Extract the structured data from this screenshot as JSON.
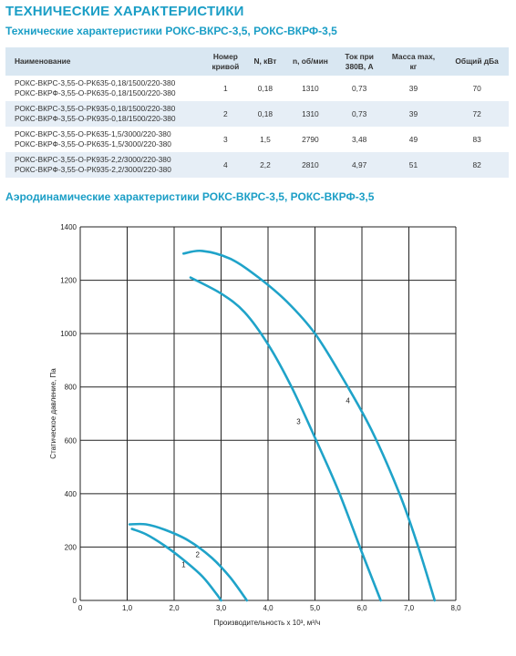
{
  "title": "ТЕХНИЧЕСКИЕ ХАРАКТЕРИСТИКИ",
  "table_title": "Технические характеристики РОКС-ВКРС-3,5, РОКС-ВКРФ-3,5",
  "table": {
    "headers": {
      "name": "Наименование",
      "curve": [
        "Номер",
        "кривой"
      ],
      "power": "N, кВт",
      "rpm": "n, об/мин",
      "current": [
        "Ток при",
        "380В, А"
      ],
      "mass": [
        "Масса max,",
        "кг"
      ],
      "noise": "Общий дБа"
    },
    "rows": [
      {
        "names": [
          "РОКС-ВКРС-3,55-О-РК635-0,18/1500/220-380",
          "РОКС-ВКРФ-3,55-О-РК635-0,18/1500/220-380"
        ],
        "curve": "1",
        "power": "0,18",
        "rpm": "1310",
        "current": "0,73",
        "mass": "39",
        "noise": "70"
      },
      {
        "names": [
          "РОКС-ВКРС-3,55-О-РК935-0,18/1500/220-380",
          "РОКС-ВКРФ-3,55-О-РК935-0,18/1500/220-380"
        ],
        "curve": "2",
        "power": "0,18",
        "rpm": "1310",
        "current": "0,73",
        "mass": "39",
        "noise": "72"
      },
      {
        "names": [
          "РОКС-ВКРС-3,55-О-РК635-1,5/3000/220-380",
          "РОКС-ВКРФ-3,55-О-РК635-1,5/3000/220-380"
        ],
        "curve": "3",
        "power": "1,5",
        "rpm": "2790",
        "current": "3,48",
        "mass": "49",
        "noise": "83"
      },
      {
        "names": [
          "РОКС-ВКРС-3,55-О-РК935-2,2/3000/220-380",
          "РОКС-ВКРФ-3,55-О-РК935-2,2/3000/220-380"
        ],
        "curve": "4",
        "power": "2,2",
        "rpm": "2810",
        "current": "4,97",
        "mass": "51",
        "noise": "82"
      }
    ]
  },
  "chart_title": "Аэродинамические характеристики РОКС-ВКРС-3,5, РОКС-ВКРФ-3,5",
  "chart_data": {
    "type": "line",
    "xlabel": "Производительность x 10³, м³/ч",
    "ylabel": "Статическое давление, Па",
    "xlim": [
      0,
      8
    ],
    "ylim": [
      0,
      1400
    ],
    "xticks": [
      "0",
      "1,0",
      "2,0",
      "3,0",
      "4,0",
      "5,0",
      "6,0",
      "7,0",
      "8,0"
    ],
    "yticks": [
      "0",
      "200",
      "400",
      "600",
      "800",
      "1000",
      "1200",
      "1400"
    ],
    "grid": true,
    "line_color": "#1fa3c9",
    "series": [
      {
        "name": "1",
        "x": [
          1.1,
          1.4,
          1.8,
          2.2,
          2.6,
          2.9,
          3.0
        ],
        "y": [
          268,
          248,
          205,
          152,
          90,
          25,
          0
        ]
      },
      {
        "name": "2",
        "x": [
          1.05,
          1.4,
          1.8,
          2.3,
          2.8,
          3.2,
          3.55
        ],
        "y": [
          285,
          285,
          265,
          225,
          160,
          85,
          0
        ]
      },
      {
        "name": "3",
        "x": [
          2.35,
          3.0,
          3.5,
          4.0,
          4.5,
          5.0,
          5.5,
          6.0,
          6.4
        ],
        "y": [
          1210,
          1150,
          1080,
          960,
          800,
          610,
          410,
          180,
          0
        ]
      },
      {
        "name": "4",
        "x": [
          2.2,
          2.6,
          3.2,
          3.8,
          4.4,
          5.0,
          5.6,
          6.2,
          6.8,
          7.2,
          7.55
        ],
        "y": [
          1300,
          1310,
          1280,
          1210,
          1120,
          1000,
          830,
          640,
          400,
          200,
          0
        ]
      }
    ],
    "curve_labels": [
      {
        "text": "1",
        "x": 2.2,
        "y": 125
      },
      {
        "text": "2",
        "x": 2.5,
        "y": 162
      },
      {
        "text": "3",
        "x": 4.65,
        "y": 660
      },
      {
        "text": "4",
        "x": 5.7,
        "y": 740
      }
    ]
  }
}
